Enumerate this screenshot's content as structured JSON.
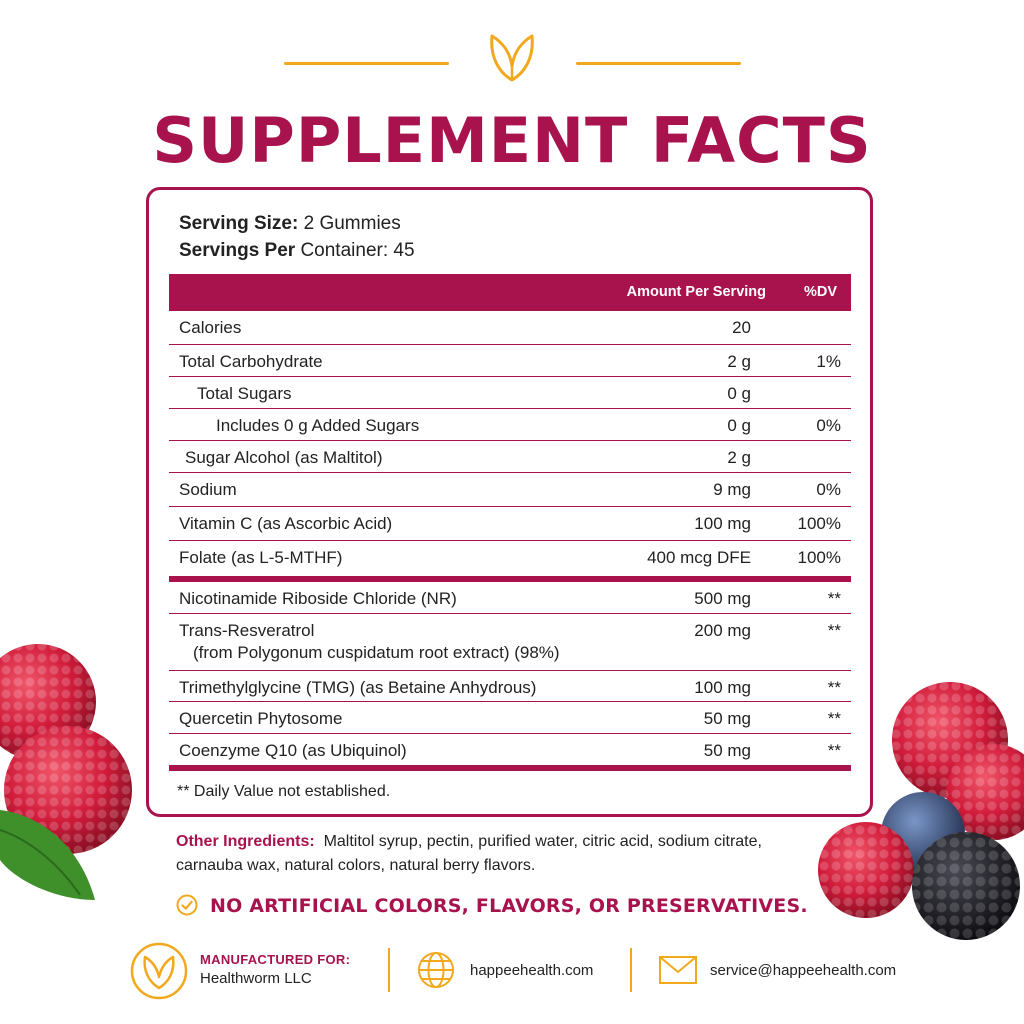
{
  "title": "SUPPLEMENT FACTS",
  "serving": {
    "size_label": "Serving Size:",
    "size_value": "2 Gummies",
    "per_label": "Servings Per",
    "per_value": "Container: 45"
  },
  "table": {
    "header_amount": "Amount Per Serving",
    "header_dv": "%DV",
    "rows": [
      {
        "name": "Calories",
        "amount": "20",
        "dv": ""
      },
      {
        "name": "Total Carbohydrate",
        "amount": "2 g",
        "dv": "1%"
      },
      {
        "name": "Total Sugars",
        "amount": "0 g",
        "dv": ""
      },
      {
        "name": "Includes 0 g Added Sugars",
        "amount": "0 g",
        "dv": "0%"
      },
      {
        "name": "Sugar Alcohol (as Maltitol)",
        "amount": "2 g",
        "dv": ""
      },
      {
        "name": "Sodium",
        "amount": "9 mg",
        "dv": "0%"
      },
      {
        "name": "Vitamin C (as Ascorbic Acid)",
        "amount": "100 mg",
        "dv": "100%"
      },
      {
        "name": "Folate (as L-5-MTHF)",
        "amount": "400 mcg DFE",
        "dv": "100%"
      },
      {
        "name": "Nicotinamide Riboside Chloride (NR)",
        "amount": "500 mg",
        "dv": "**"
      },
      {
        "name": "Trans-Resveratrol",
        "sub": "(from Polygonum cuspidatum root extract) (98%)",
        "amount": "200 mg",
        "dv": "**"
      },
      {
        "name": "Trimethylglycine (TMG) (as Betaine Anhydrous)",
        "amount": "100 mg",
        "dv": "**"
      },
      {
        "name": "Quercetin Phytosome",
        "amount": "50 mg",
        "dv": "**"
      },
      {
        "name": "Coenzyme Q10 (as Ubiquinol)",
        "amount": "50 mg",
        "dv": "**"
      }
    ],
    "footnote": "** Daily Value not established."
  },
  "other": {
    "label": "Other Ingredients:",
    "text": "Maltitol syrup, pectin, purified water, citric acid, sodium citrate, carnauba wax, natural colors, natural berry flavors."
  },
  "claim": "NO ARTIFICIAL COLORS, FLAVORS, OR PRESERVATIVES.",
  "footer": {
    "mfg_label": "MANUFACTURED FOR:",
    "mfg_name": "Healthworm LLC",
    "website": "happeehealth.com",
    "email": "service@happeehealth.com"
  },
  "colors": {
    "brand": "#A8134E",
    "accent": "#F2A81D"
  },
  "icons": [
    "leaf-logo-icon",
    "check-circle-icon",
    "globe-icon",
    "envelope-icon"
  ]
}
